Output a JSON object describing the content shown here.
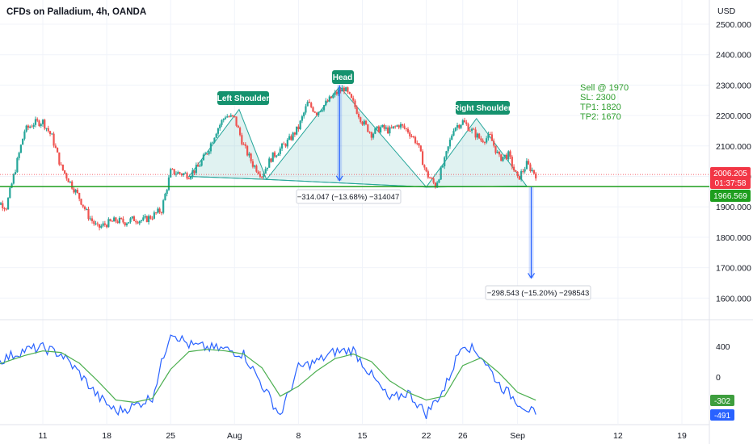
{
  "header": {
    "title": "CFDs on Palladium, 4h, OANDA",
    "currency": "USD"
  },
  "chart_data": [
    {
      "type": "candlestick",
      "title": "CFDs on Palladium, 4h, OANDA",
      "ylabel": "USD",
      "ylim": [
        1560,
        2540
      ],
      "y_ticks": [
        1600,
        1700,
        1800,
        1900,
        2000,
        2100,
        2200,
        2300,
        2400,
        2500
      ],
      "y_tick_labels": [
        "1600.000",
        "1700.000",
        "1800.000",
        "1900.000",
        "2000.000",
        "2100.000",
        "2200.000",
        "2300.000",
        "2400.000",
        "2500.000"
      ],
      "x_tick_labels": [
        "11",
        "18",
        "25",
        "Aug",
        "8",
        "15",
        "22",
        "26",
        "Sep",
        "12",
        "19"
      ],
      "grid": true,
      "close_path": [
        {
          "date": "Jul 5",
          "close": 1935
        },
        {
          "date": "Jul 7",
          "close": 1900
        },
        {
          "date": "Jul 8",
          "close": 2025
        },
        {
          "date": "Jul 9",
          "close": 2150
        },
        {
          "date": "Jul 10",
          "close": 2175
        },
        {
          "date": "Jul 11",
          "close": 2180
        },
        {
          "date": "Jul 12",
          "close": 2130
        },
        {
          "date": "Jul 13",
          "close": 2030
        },
        {
          "date": "Jul 14",
          "close": 1980
        },
        {
          "date": "Jul 15",
          "close": 1930
        },
        {
          "date": "Jul 16",
          "close": 1870
        },
        {
          "date": "Jul 17",
          "close": 1830
        },
        {
          "date": "Jul 18",
          "close": 1845
        },
        {
          "date": "Jul 19",
          "close": 1855
        },
        {
          "date": "Jul 20",
          "close": 1850
        },
        {
          "date": "Jul 21",
          "close": 1860
        },
        {
          "date": "Jul 22",
          "close": 1855
        },
        {
          "date": "Jul 23",
          "close": 1870
        },
        {
          "date": "Jul 24",
          "close": 1890
        },
        {
          "date": "Jul 25",
          "close": 2015
        },
        {
          "date": "Jul 26",
          "close": 2010
        },
        {
          "date": "Jul 27",
          "close": 2005
        },
        {
          "date": "Jul 28",
          "close": 2030
        },
        {
          "date": "Jul 29",
          "close": 2080
        },
        {
          "date": "Jul 30",
          "close": 2150
        },
        {
          "date": "Jul 31",
          "close": 2200
        },
        {
          "date": "Aug 1",
          "close": 2190
        },
        {
          "date": "Aug 2",
          "close": 2100
        },
        {
          "date": "Aug 3",
          "close": 2040
        },
        {
          "date": "Aug 4",
          "close": 2005
        },
        {
          "date": "Aug 5",
          "close": 2060
        },
        {
          "date": "Aug 6",
          "close": 2090
        },
        {
          "date": "Aug 7",
          "close": 2120
        },
        {
          "date": "Aug 8",
          "close": 2160
        },
        {
          "date": "Aug 9",
          "close": 2240
        },
        {
          "date": "Aug 10",
          "close": 2210
        },
        {
          "date": "Aug 11",
          "close": 2240
        },
        {
          "date": "Aug 12",
          "close": 2270
        },
        {
          "date": "Aug 13",
          "close": 2290
        },
        {
          "date": "Aug 14",
          "close": 2240
        },
        {
          "date": "Aug 15",
          "close": 2180
        },
        {
          "date": "Aug 16",
          "close": 2140
        },
        {
          "date": "Aug 17",
          "close": 2160
        },
        {
          "date": "Aug 18",
          "close": 2150
        },
        {
          "date": "Aug 19",
          "close": 2170
        },
        {
          "date": "Aug 20",
          "close": 2150
        },
        {
          "date": "Aug 21",
          "close": 2110
        },
        {
          "date": "Aug 22",
          "close": 2010
        },
        {
          "date": "Aug 23",
          "close": 1970
        },
        {
          "date": "Aug 24",
          "close": 2050
        },
        {
          "date": "Aug 25",
          "close": 2160
        },
        {
          "date": "Aug 26",
          "close": 2180
        },
        {
          "date": "Aug 27",
          "close": 2150
        },
        {
          "date": "Aug 28",
          "close": 2120
        },
        {
          "date": "Aug 29",
          "close": 2130
        },
        {
          "date": "Aug 30",
          "close": 2060
        },
        {
          "date": "Aug 31",
          "close": 2070
        },
        {
          "date": "Sep 1",
          "close": 1990
        },
        {
          "date": "Sep 2",
          "close": 2040
        },
        {
          "date": "Sep 3",
          "close": 2006
        }
      ],
      "current_price": "2006.205",
      "countdown": "01:37:58",
      "neckline_price": "1966.569",
      "pattern_labels": {
        "left": "Left Shoulder",
        "head": "Head",
        "right": "Right Shoulder"
      },
      "measures": [
        {
          "from": 2300,
          "to": 1986,
          "text": "−314.047 (−13.68%) −314047"
        },
        {
          "from": 1965,
          "to": 1666,
          "text": "−298.543 (−15.20%) −298543"
        }
      ],
      "trade_note": [
        "Sell @ 1970",
        "SL:  2300",
        "TP1:  1820",
        "TP2:  1670"
      ],
      "colors": {
        "up": "#26a69a",
        "down": "#ef5350",
        "neckline": "#1e9e1e",
        "pattern_fill": "#26a69a",
        "measure": "#2962ff",
        "note": "#2e9e2e"
      }
    },
    {
      "type": "line",
      "title": "",
      "y_tick_labels": [
        "400",
        "0"
      ],
      "y_ticks": [
        400,
        0
      ],
      "ylim": [
        -600,
        700
      ],
      "x": [
        "Jul 5",
        "Jul 7",
        "Jul 9",
        "Jul 11",
        "Jul 13",
        "Jul 15",
        "Jul 17",
        "Jul 19",
        "Jul 21",
        "Jul 23",
        "Jul 25",
        "Jul 27",
        "Jul 29",
        "Jul 31",
        "Aug 2",
        "Aug 4",
        "Aug 6",
        "Aug 8",
        "Aug 10",
        "Aug 12",
        "Aug 14",
        "Aug 16",
        "Aug 18",
        "Aug 20",
        "Aug 22",
        "Aug 24",
        "Aug 26",
        "Aug 28",
        "Aug 30",
        "Sep 1",
        "Sep 3"
      ],
      "series": [
        {
          "values": [
            150,
            250,
            350,
            380,
            300,
            50,
            -250,
            -450,
            -380,
            -260,
            600,
            420,
            380,
            360,
            300,
            -100,
            -500,
            120,
            200,
            330,
            350,
            20,
            -300,
            -200,
            -480,
            -150,
            450,
            280,
            -100,
            -320,
            -491
          ],
          "color": "#2962ff"
        },
        {
          "values": [
            120,
            200,
            280,
            340,
            320,
            180,
            -50,
            -300,
            -330,
            -280,
            100,
            330,
            360,
            340,
            300,
            120,
            -250,
            -120,
            80,
            240,
            300,
            200,
            -50,
            -200,
            -300,
            -250,
            150,
            250,
            50,
            -200,
            -302
          ],
          "color": "#4caf50"
        }
      ],
      "last_values": [
        "-302",
        "-491"
      ]
    }
  ]
}
